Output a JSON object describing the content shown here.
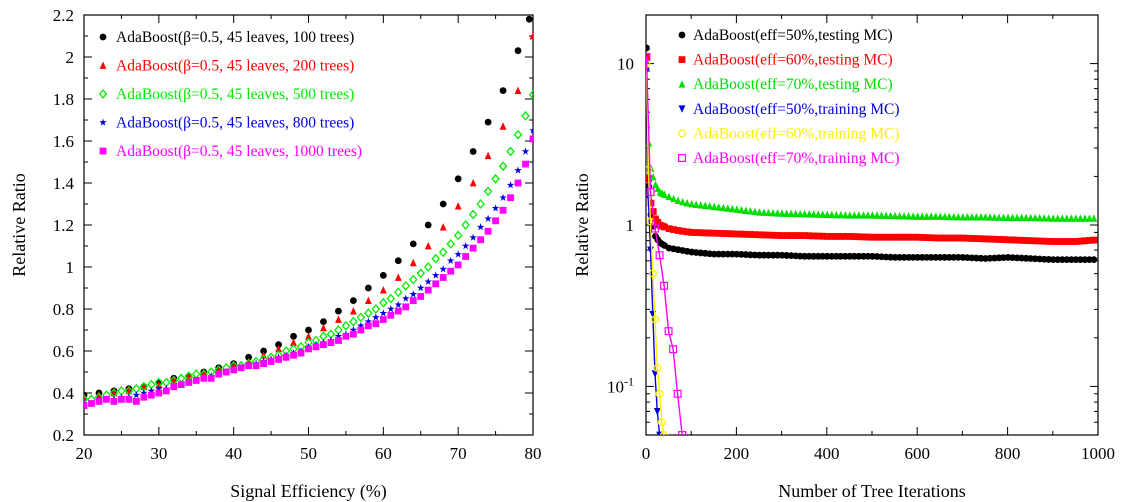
{
  "chart_data": [
    {
      "type": "scatter",
      "title": "",
      "xlabel": "Signal Efficiency (%)",
      "ylabel": "Relative Ratio",
      "xlim": [
        20,
        80
      ],
      "ylim": [
        0.2,
        2.2
      ],
      "x_ticks": [
        "20",
        "30",
        "40",
        "50",
        "60",
        "70",
        "80"
      ],
      "y_ticks": [
        "0.2",
        "0.4",
        "0.6",
        "0.8",
        "1",
        "1.2",
        "1.4",
        "1.6",
        "1.8",
        "2",
        "2.2"
      ],
      "grid": false,
      "legend_position": "top-left",
      "series": [
        {
          "name": "AdaBoost(β=0.5, 45 leaves, 100 trees)",
          "color": "#000000",
          "marker": "circle",
          "x": [
            20,
            22,
            24,
            26,
            28,
            30,
            32,
            34,
            36,
            38,
            40,
            42,
            44,
            46,
            48,
            50,
            52,
            54,
            56,
            58,
            60,
            62,
            64,
            66,
            68,
            70,
            72,
            74,
            76,
            78,
            79.5
          ],
          "y": [
            0.39,
            0.4,
            0.41,
            0.42,
            0.43,
            0.45,
            0.47,
            0.48,
            0.5,
            0.52,
            0.54,
            0.57,
            0.6,
            0.63,
            0.67,
            0.7,
            0.74,
            0.79,
            0.84,
            0.9,
            0.96,
            1.03,
            1.11,
            1.2,
            1.3,
            1.42,
            1.55,
            1.69,
            1.84,
            2.03,
            2.18
          ]
        },
        {
          "name": "AdaBoost(β=0.5, 45 leaves, 200 trees)",
          "color": "#ff0000",
          "marker": "triangle",
          "x": [
            20,
            22,
            24,
            26,
            28,
            30,
            32,
            34,
            36,
            38,
            40,
            42,
            44,
            46,
            48,
            50,
            52,
            54,
            56,
            58,
            60,
            62,
            64,
            66,
            68,
            70,
            72,
            74,
            76,
            78,
            80
          ],
          "y": [
            0.38,
            0.39,
            0.4,
            0.41,
            0.43,
            0.44,
            0.46,
            0.48,
            0.5,
            0.51,
            0.53,
            0.55,
            0.58,
            0.61,
            0.64,
            0.67,
            0.71,
            0.75,
            0.79,
            0.84,
            0.89,
            0.95,
            1.02,
            1.1,
            1.19,
            1.29,
            1.4,
            1.53,
            1.67,
            1.84,
            2.1
          ]
        },
        {
          "name": "AdaBoost(β=0.5, 45 leaves, 500 trees)",
          "color": "#00ee00",
          "marker": "diamond",
          "x": [
            20,
            21,
            22,
            23,
            24,
            25,
            26,
            27,
            28,
            29,
            30,
            31,
            32,
            33,
            34,
            35,
            36,
            37,
            38,
            39,
            40,
            41,
            42,
            43,
            44,
            45,
            46,
            47,
            48,
            49,
            50,
            51,
            52,
            53,
            54,
            55,
            56,
            57,
            58,
            59,
            60,
            61,
            62,
            63,
            64,
            65,
            66,
            67,
            68,
            69,
            70,
            71,
            72,
            73,
            74,
            75,
            76,
            77,
            78,
            79,
            80
          ],
          "y": [
            0.37,
            0.37,
            0.38,
            0.39,
            0.4,
            0.41,
            0.41,
            0.42,
            0.43,
            0.44,
            0.45,
            0.45,
            0.46,
            0.47,
            0.48,
            0.49,
            0.49,
            0.5,
            0.51,
            0.52,
            0.53,
            0.53,
            0.54,
            0.55,
            0.56,
            0.57,
            0.58,
            0.6,
            0.61,
            0.62,
            0.64,
            0.65,
            0.67,
            0.68,
            0.7,
            0.72,
            0.74,
            0.76,
            0.78,
            0.8,
            0.83,
            0.85,
            0.88,
            0.91,
            0.94,
            0.97,
            1.0,
            1.04,
            1.07,
            1.11,
            1.15,
            1.2,
            1.25,
            1.3,
            1.36,
            1.42,
            1.48,
            1.55,
            1.63,
            1.72,
            1.82
          ]
        },
        {
          "name": "AdaBoost(β=0.5, 45 leaves, 800 trees)",
          "color": "#0000dd",
          "marker": "star",
          "x": [
            20,
            21,
            22,
            23,
            24,
            25,
            26,
            27,
            28,
            29,
            30,
            31,
            32,
            33,
            34,
            35,
            36,
            37,
            38,
            39,
            40,
            41,
            42,
            43,
            44,
            45,
            46,
            47,
            48,
            49,
            50,
            51,
            52,
            53,
            54,
            55,
            56,
            57,
            58,
            59,
            60,
            61,
            62,
            63,
            64,
            65,
            66,
            67,
            68,
            69,
            70,
            71,
            72,
            73,
            74,
            75,
            76,
            77,
            78,
            79,
            80
          ],
          "y": [
            0.35,
            0.35,
            0.36,
            0.37,
            0.37,
            0.38,
            0.38,
            0.39,
            0.4,
            0.41,
            0.42,
            0.42,
            0.43,
            0.44,
            0.45,
            0.46,
            0.47,
            0.48,
            0.49,
            0.5,
            0.51,
            0.52,
            0.53,
            0.54,
            0.55,
            0.56,
            0.57,
            0.58,
            0.59,
            0.6,
            0.62,
            0.63,
            0.64,
            0.65,
            0.67,
            0.68,
            0.7,
            0.72,
            0.74,
            0.76,
            0.78,
            0.8,
            0.82,
            0.85,
            0.87,
            0.9,
            0.93,
            0.96,
            0.99,
            1.03,
            1.06,
            1.1,
            1.14,
            1.19,
            1.23,
            1.28,
            1.33,
            1.39,
            1.46,
            1.55,
            1.65
          ]
        },
        {
          "name": "AdaBoost(β=0.5, 45 leaves, 1000 trees)",
          "color": "#ff00ff",
          "marker": "square",
          "x": [
            20,
            21,
            22,
            23,
            24,
            25,
            26,
            27,
            28,
            29,
            30,
            31,
            32,
            33,
            34,
            35,
            36,
            37,
            38,
            39,
            40,
            41,
            42,
            43,
            44,
            45,
            46,
            47,
            48,
            49,
            50,
            51,
            52,
            53,
            54,
            55,
            56,
            57,
            58,
            59,
            60,
            61,
            62,
            63,
            64,
            65,
            66,
            67,
            68,
            69,
            70,
            71,
            72,
            73,
            74,
            75,
            76,
            77,
            78,
            79,
            80
          ],
          "y": [
            0.34,
            0.35,
            0.36,
            0.37,
            0.36,
            0.37,
            0.37,
            0.36,
            0.38,
            0.39,
            0.4,
            0.41,
            0.43,
            0.44,
            0.45,
            0.46,
            0.47,
            0.47,
            0.49,
            0.5,
            0.51,
            0.52,
            0.53,
            0.53,
            0.54,
            0.55,
            0.56,
            0.57,
            0.58,
            0.59,
            0.61,
            0.62,
            0.63,
            0.64,
            0.65,
            0.67,
            0.68,
            0.7,
            0.72,
            0.73,
            0.75,
            0.77,
            0.79,
            0.81,
            0.84,
            0.86,
            0.89,
            0.92,
            0.95,
            0.98,
            1.01,
            1.05,
            1.09,
            1.13,
            1.17,
            1.22,
            1.27,
            1.33,
            1.4,
            1.49,
            1.61
          ]
        }
      ]
    },
    {
      "type": "scatter",
      "title": "",
      "xlabel": "Number of Tree Iterations",
      "ylabel": "Relative Ratio",
      "xlim": [
        0,
        1000
      ],
      "ylim": [
        0.05,
        20
      ],
      "yscale": "log",
      "x_ticks": [
        "0",
        "200",
        "400",
        "600",
        "800",
        "1000"
      ],
      "grid": false,
      "legend_position": "top",
      "series": [
        {
          "name": "AdaBoost(eff=50%,testing MC)",
          "color": "#000000",
          "marker": "circle",
          "x": [
            1,
            5,
            10,
            20,
            30,
            50,
            75,
            100,
            150,
            200,
            250,
            300,
            350,
            400,
            450,
            500,
            550,
            600,
            650,
            700,
            750,
            800,
            850,
            900,
            950,
            1000
          ],
          "y": [
            12.5,
            1.9,
            1.2,
            0.86,
            0.78,
            0.72,
            0.7,
            0.68,
            0.66,
            0.66,
            0.65,
            0.65,
            0.64,
            0.64,
            0.64,
            0.64,
            0.63,
            0.63,
            0.63,
            0.63,
            0.62,
            0.63,
            0.62,
            0.61,
            0.61,
            0.61
          ]
        },
        {
          "name": "AdaBoost(eff=60%,testing MC)",
          "color": "#ff0000",
          "marker": "square",
          "x": [
            1,
            5,
            10,
            20,
            30,
            50,
            75,
            100,
            150,
            200,
            250,
            300,
            350,
            400,
            450,
            500,
            550,
            600,
            650,
            700,
            750,
            800,
            850,
            900,
            950,
            1000
          ],
          "y": [
            11.0,
            2.1,
            1.4,
            1.1,
            1.0,
            0.95,
            0.92,
            0.9,
            0.89,
            0.88,
            0.87,
            0.86,
            0.86,
            0.85,
            0.85,
            0.84,
            0.84,
            0.84,
            0.83,
            0.83,
            0.82,
            0.81,
            0.8,
            0.79,
            0.79,
            0.81
          ]
        },
        {
          "name": "AdaBoost(eff=70%,testing MC)",
          "color": "#00dd00",
          "marker": "triangle",
          "x": [
            1,
            5,
            10,
            20,
            30,
            50,
            75,
            100,
            150,
            200,
            250,
            300,
            350,
            400,
            450,
            500,
            550,
            600,
            650,
            700,
            750,
            800,
            850,
            900,
            950,
            1000
          ],
          "y": [
            10.5,
            3.5,
            2.3,
            1.8,
            1.6,
            1.5,
            1.4,
            1.35,
            1.3,
            1.25,
            1.2,
            1.18,
            1.17,
            1.16,
            1.15,
            1.15,
            1.14,
            1.13,
            1.13,
            1.12,
            1.12,
            1.11,
            1.11,
            1.1,
            1.1,
            1.1
          ]
        },
        {
          "name": "AdaBoost(eff=50%,training MC)",
          "color": "#0000dd",
          "marker": "triangle-down",
          "x": [
            1,
            5,
            10,
            15,
            20,
            25,
            30
          ],
          "y": [
            9.0,
            1.5,
            0.7,
            0.28,
            0.12,
            0.07,
            0.05
          ]
        },
        {
          "name": "AdaBoost(eff=60%,training MC)",
          "color": "#ffee00",
          "marker": "circle-open",
          "x": [
            1,
            5,
            10,
            15,
            20,
            25,
            30,
            35,
            40
          ],
          "y": [
            10.0,
            2.2,
            1.05,
            0.5,
            0.26,
            0.13,
            0.09,
            0.06,
            0.05
          ]
        },
        {
          "name": "AdaBoost(eff=70%,training MC)",
          "color": "#ff00ff",
          "marker": "square-open",
          "x": [
            1,
            10,
            20,
            30,
            40,
            50,
            60,
            70,
            80
          ],
          "y": [
            11.0,
            1.6,
            0.95,
            0.65,
            0.42,
            0.22,
            0.17,
            0.09,
            0.05
          ]
        }
      ]
    }
  ]
}
